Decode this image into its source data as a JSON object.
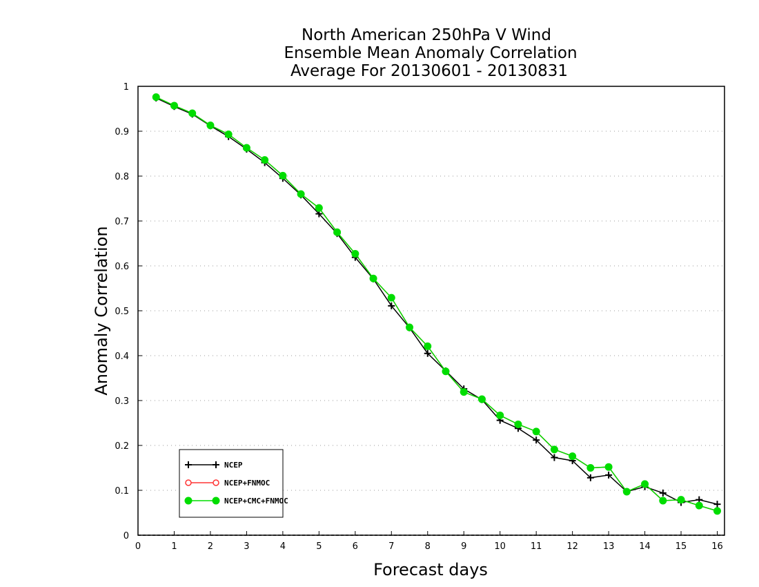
{
  "chart_data": {
    "type": "line",
    "title_lines": [
      "North American 250hPa V Wind",
      "Ensemble Mean Anomaly Correlation",
      "Average For 20130601 - 20130831"
    ],
    "xlabel": "Forecast days",
    "ylabel": "Anomaly Correlation",
    "xlim": [
      0,
      16.2
    ],
    "ylim": [
      0,
      1
    ],
    "xticks": [
      "0",
      "1",
      "2",
      "3",
      "4",
      "5",
      "6",
      "7",
      "8",
      "9",
      "10",
      "11",
      "12",
      "13",
      "14",
      "15",
      "16"
    ],
    "yticks": [
      "0",
      "0.1",
      "0.2",
      "0.3",
      "0.4",
      "0.5",
      "0.6",
      "0.7",
      "0.8",
      "0.9",
      "1"
    ],
    "grid": "horizontal dotted",
    "legend_position": "bottom-left",
    "x": [
      0.5,
      1,
      1.5,
      2,
      2.5,
      3,
      3.5,
      4,
      4.5,
      5,
      5.5,
      6,
      6.5,
      7,
      7.5,
      8,
      8.5,
      9,
      9.5,
      10,
      10.5,
      11,
      11.5,
      12,
      12.5,
      13,
      13.5,
      14,
      14.5,
      15,
      15.5,
      16
    ],
    "series": [
      {
        "name": "NCEP",
        "color": "#000000",
        "marker": "plus",
        "values": [
          0.974,
          0.955,
          0.938,
          0.912,
          0.888,
          0.86,
          0.83,
          0.795,
          0.758,
          0.716,
          0.672,
          0.619,
          0.571,
          0.511,
          0.462,
          0.405,
          0.366,
          0.326,
          0.302,
          0.256,
          0.238,
          0.212,
          0.173,
          0.166,
          0.128,
          0.134,
          0.097,
          0.108,
          0.094,
          0.073,
          0.079,
          0.069
        ]
      },
      {
        "name": "NCEP+FNMOC",
        "color": "#ff3333",
        "marker": "open-circle",
        "values": [
          0.976,
          0.957,
          0.94,
          0.913,
          0.893,
          0.863,
          0.836,
          0.801,
          0.76,
          0.729,
          0.675,
          0.627,
          0.572,
          0.529,
          0.463,
          0.421,
          0.365,
          0.319,
          0.303,
          0.267,
          0.247,
          0.231,
          0.191,
          0.176,
          0.15,
          0.152,
          0.097,
          0.114,
          0.077,
          0.079,
          0.066,
          0.054
        ]
      },
      {
        "name": "NCEP+CMC+FNMOC",
        "color": "#00dd00",
        "marker": "filled-circle",
        "values": [
          0.976,
          0.957,
          0.94,
          0.913,
          0.893,
          0.863,
          0.836,
          0.801,
          0.76,
          0.729,
          0.675,
          0.627,
          0.572,
          0.529,
          0.463,
          0.421,
          0.365,
          0.319,
          0.303,
          0.267,
          0.247,
          0.231,
          0.191,
          0.176,
          0.15,
          0.152,
          0.097,
          0.114,
          0.077,
          0.079,
          0.066,
          0.054
        ]
      }
    ]
  }
}
